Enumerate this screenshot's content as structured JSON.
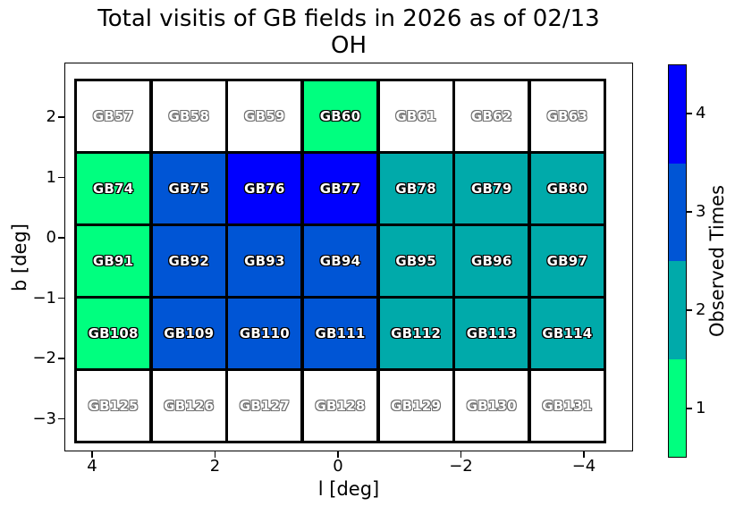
{
  "title": {
    "line1": "Total visitis of GB fields in 2026 as of 02/13",
    "line2": "OH"
  },
  "chart_data": {
    "type": "heatmap",
    "title": "Total visitis of GB fields in 2026 as of 02/13",
    "subtitle": "OH",
    "xlabel": "l [deg]",
    "ylabel": "b [deg]",
    "x_tick_labels": [
      "4",
      "2",
      "0",
      "−2",
      "−4"
    ],
    "y_tick_labels": [
      "2",
      "1",
      "0",
      "−1",
      "−2",
      "−3"
    ],
    "x_axis_reversed": true,
    "grid_on": false,
    "value_colors": {
      "0": "#ffffff",
      "1": "#00ff7f",
      "2": "#00aaaa",
      "3": "#0055d5",
      "4": "#0000ff"
    },
    "colorbar": {
      "label": "Observed Times",
      "tick_labels": [
        "4",
        "3",
        "2",
        "1"
      ],
      "segment_colors_top_to_bottom": [
        "#0000ff",
        "#0055d5",
        "#00aaaa",
        "#00ff7f"
      ]
    },
    "rows": [
      [
        {
          "label": "GB57",
          "value": 0
        },
        {
          "label": "GB58",
          "value": 0
        },
        {
          "label": "GB59",
          "value": 0
        },
        {
          "label": "GB60",
          "value": 1
        },
        {
          "label": "GB61",
          "value": 0
        },
        {
          "label": "GB62",
          "value": 0
        },
        {
          "label": "GB63",
          "value": 0
        }
      ],
      [
        {
          "label": "GB74",
          "value": 1
        },
        {
          "label": "GB75",
          "value": 3
        },
        {
          "label": "GB76",
          "value": 4
        },
        {
          "label": "GB77",
          "value": 4
        },
        {
          "label": "GB78",
          "value": 2
        },
        {
          "label": "GB79",
          "value": 2
        },
        {
          "label": "GB80",
          "value": 2
        }
      ],
      [
        {
          "label": "GB91",
          "value": 1
        },
        {
          "label": "GB92",
          "value": 3
        },
        {
          "label": "GB93",
          "value": 3
        },
        {
          "label": "GB94",
          "value": 3
        },
        {
          "label": "GB95",
          "value": 2
        },
        {
          "label": "GB96",
          "value": 2
        },
        {
          "label": "GB97",
          "value": 2
        }
      ],
      [
        {
          "label": "GB108",
          "value": 1
        },
        {
          "label": "GB109",
          "value": 3
        },
        {
          "label": "GB110",
          "value": 3
        },
        {
          "label": "GB111",
          "value": 3
        },
        {
          "label": "GB112",
          "value": 2
        },
        {
          "label": "GB113",
          "value": 2
        },
        {
          "label": "GB114",
          "value": 2
        }
      ],
      [
        {
          "label": "GB125",
          "value": 0
        },
        {
          "label": "GB126",
          "value": 0
        },
        {
          "label": "GB127",
          "value": 0
        },
        {
          "label": "GB128",
          "value": 0
        },
        {
          "label": "GB129",
          "value": 0
        },
        {
          "label": "GB130",
          "value": 0
        },
        {
          "label": "GB131",
          "value": 0
        }
      ]
    ]
  }
}
